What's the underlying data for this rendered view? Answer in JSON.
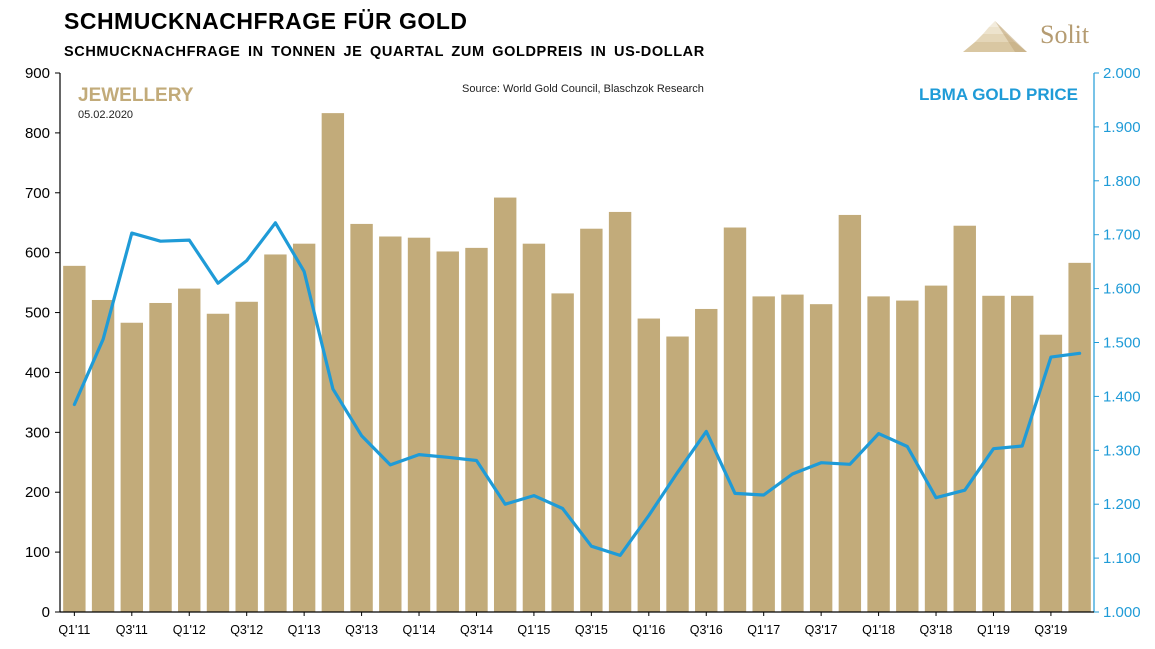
{
  "header": {
    "title": "SCHMUCKNACHFRAGE FÜR GOLD",
    "subtitle": "SCHMUCKNACHFRAGE IN TONNEN JE QUARTAL ZUM GOLDPREIS IN US-DOLLAR",
    "logo_text": "Solit"
  },
  "chart_data": {
    "type": "bar",
    "source": "Source: World Gold Council, Blaschzok Research",
    "date": "05.02.2020",
    "colors": {
      "bars": "#c2ab7a",
      "line": "#1f9bd7"
    },
    "left_axis": {
      "ylim": [
        0,
        900
      ],
      "ticks": [
        "0",
        "100",
        "200",
        "300",
        "400",
        "500",
        "600",
        "700",
        "800",
        "900"
      ]
    },
    "right_axis": {
      "ylim": [
        1000,
        2000
      ],
      "ticks": [
        "1.000",
        "1.100",
        "1.200",
        "1.300",
        "1.400",
        "1.500",
        "1.600",
        "1.700",
        "1.800",
        "1.900",
        "2.000"
      ]
    },
    "x_tick_labels": [
      "Q1'11",
      "Q3'11",
      "Q1'12",
      "Q3'12",
      "Q1'13",
      "Q3'13",
      "Q1'14",
      "Q3'14",
      "Q1'15",
      "Q3'15",
      "Q1'16",
      "Q3'16",
      "Q1'17",
      "Q3'17",
      "Q1'18",
      "Q3'18",
      "Q1'19",
      "Q3'19"
    ],
    "categories": [
      "Q1'11",
      "Q2'11",
      "Q3'11",
      "Q4'11",
      "Q1'12",
      "Q2'12",
      "Q3'12",
      "Q4'12",
      "Q1'13",
      "Q2'13",
      "Q3'13",
      "Q4'13",
      "Q1'14",
      "Q2'14",
      "Q3'14",
      "Q4'14",
      "Q1'15",
      "Q2'15",
      "Q3'15",
      "Q4'15",
      "Q1'16",
      "Q2'16",
      "Q3'16",
      "Q4'16",
      "Q1'17",
      "Q2'17",
      "Q3'17",
      "Q4'17",
      "Q1'18",
      "Q2'18",
      "Q3'18",
      "Q4'18",
      "Q1'19",
      "Q2'19",
      "Q3'19",
      "Q4'19"
    ],
    "series": [
      {
        "name": "JEWELLERY",
        "axis": "left",
        "values": [
          578,
          521,
          483,
          516,
          540,
          498,
          518,
          597,
          615,
          833,
          648,
          627,
          625,
          602,
          608,
          692,
          615,
          532,
          640,
          668,
          490,
          460,
          506,
          642,
          527,
          530,
          514,
          663,
          527,
          520,
          545,
          645,
          528,
          528,
          463,
          583
        ]
      },
      {
        "name": "LBMA GOLD PRICE",
        "axis": "right",
        "values": [
          1385,
          1506,
          1703,
          1688,
          1690,
          1610,
          1652,
          1722,
          1632,
          1414,
          1327,
          1273,
          1292,
          1287,
          1281,
          1200,
          1216,
          1192,
          1122,
          1105,
          1179,
          1259,
          1335,
          1220,
          1217,
          1256,
          1277,
          1274,
          1331,
          1307,
          1212,
          1226,
          1303,
          1308,
          1473,
          1480
        ]
      }
    ]
  }
}
